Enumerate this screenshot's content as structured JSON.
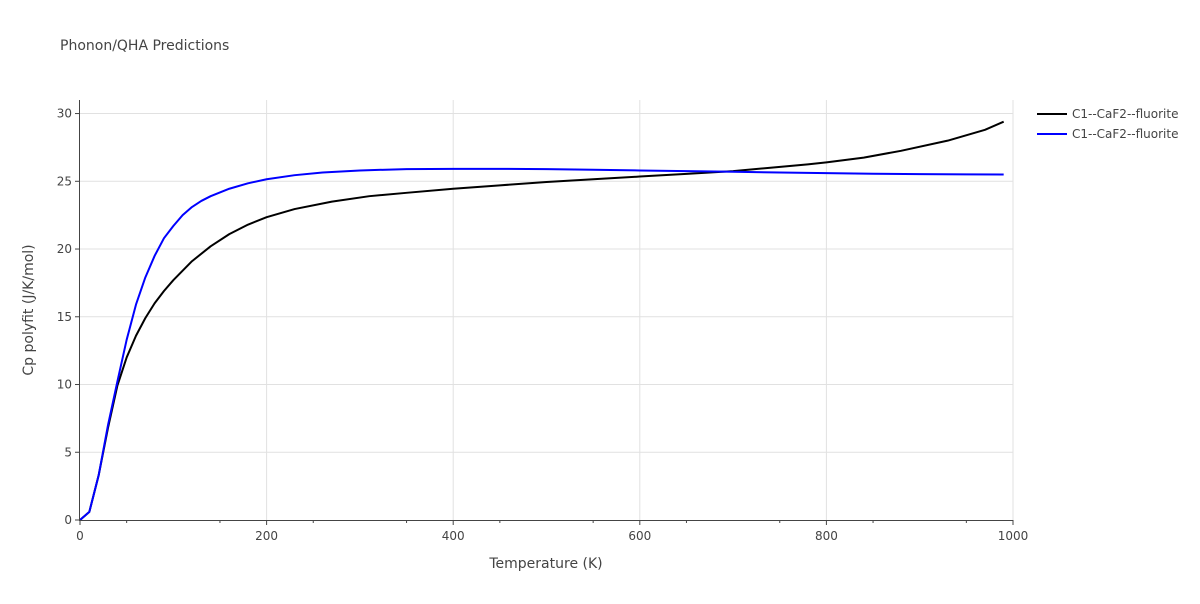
{
  "chart_data": {
    "type": "line",
    "title": "Phonon/QHA Predictions",
    "xlabel": "Temperature (K)",
    "ylabel": "Cp polyfit (J/K/mol)",
    "xlim": [
      0,
      1000
    ],
    "ylim": [
      0,
      31
    ],
    "x_ticks": [
      0,
      200,
      400,
      600,
      800,
      1000
    ],
    "y_ticks": [
      0,
      5,
      10,
      15,
      20,
      25,
      30
    ],
    "x_tick_labels": [
      "0",
      "200",
      "400",
      "600",
      "800",
      "1000"
    ],
    "y_tick_labels": [
      "0",
      "5",
      "10",
      "15",
      "20",
      "25",
      "30"
    ],
    "grid": true,
    "legend_position": "top-right",
    "series": [
      {
        "name": "C1--CaF2--fluorite",
        "color": "#000000",
        "x": [
          0,
          10,
          20,
          30,
          40,
          50,
          60,
          70,
          80,
          90,
          100,
          120,
          140,
          160,
          180,
          200,
          230,
          270,
          310,
          350,
          400,
          450,
          500,
          550,
          600,
          650,
          700,
          740,
          780,
          800,
          840,
          880,
          930,
          970,
          990
        ],
        "y": [
          0,
          0.6,
          3.3,
          6.8,
          9.9,
          12.0,
          13.6,
          14.9,
          16.0,
          16.9,
          17.7,
          19.1,
          20.2,
          21.1,
          21.8,
          22.35,
          22.95,
          23.5,
          23.9,
          24.15,
          24.45,
          24.7,
          24.95,
          25.15,
          25.35,
          25.55,
          25.75,
          26.0,
          26.25,
          26.4,
          26.75,
          27.25,
          28.0,
          28.8,
          29.4
        ]
      },
      {
        "name": "C1--CaF2--fluorite",
        "color": "#0000ff",
        "x": [
          0,
          10,
          20,
          30,
          40,
          50,
          60,
          70,
          80,
          90,
          100,
          110,
          120,
          130,
          140,
          160,
          180,
          200,
          230,
          260,
          300,
          350,
          400,
          450,
          500,
          550,
          600,
          650,
          700,
          750,
          800,
          850,
          900,
          950,
          990
        ],
        "y": [
          0,
          0.6,
          3.3,
          7.0,
          10.2,
          13.3,
          15.9,
          17.9,
          19.5,
          20.8,
          21.7,
          22.5,
          23.1,
          23.55,
          23.9,
          24.45,
          24.85,
          25.15,
          25.45,
          25.65,
          25.8,
          25.9,
          25.92,
          25.92,
          25.9,
          25.85,
          25.8,
          25.75,
          25.7,
          25.65,
          25.6,
          25.56,
          25.53,
          25.51,
          25.5
        ]
      }
    ]
  }
}
